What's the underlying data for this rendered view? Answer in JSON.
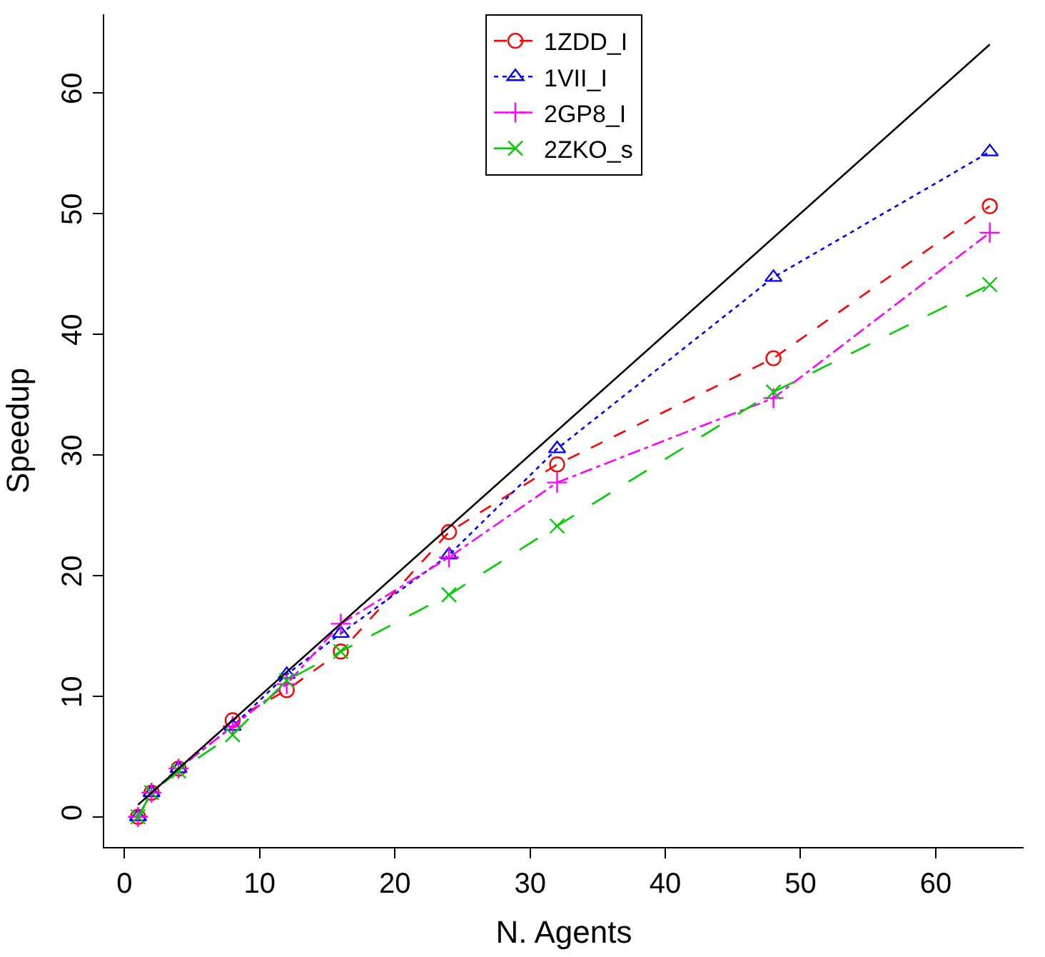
{
  "chart_data": {
    "type": "line",
    "xlabel": "N. Agents",
    "ylabel": "Speedup",
    "x": [
      1,
      2,
      4,
      8,
      12,
      16,
      24,
      32,
      48,
      64
    ],
    "xlim": [
      -1.5,
      66.5
    ],
    "ylim": [
      -2.5,
      66.5
    ],
    "xticks": [
      0,
      10,
      20,
      30,
      40,
      50,
      60
    ],
    "yticks": [
      0,
      10,
      20,
      30,
      40,
      50,
      60
    ],
    "legend": "top",
    "series": [
      {
        "name": "1ZDD_I",
        "color": "#ff0000",
        "marker": "circle",
        "line_style": "dashed",
        "values": [
          0,
          2,
          4,
          8,
          10.5,
          13.7,
          23.6,
          29.2,
          38,
          50.6
        ]
      },
      {
        "name": "1VII_I",
        "color": "#0000ff",
        "marker": "triangle",
        "line_style": "dotted",
        "values": [
          0,
          2,
          4,
          7.5,
          11.8,
          15.2,
          21.7,
          30.5,
          44.7,
          55.1
        ]
      },
      {
        "name": "2GP8_I",
        "color": "#ff00ff",
        "marker": "cross",
        "line_style": "dashdot",
        "values": [
          0,
          2,
          4,
          7.5,
          11,
          16,
          21.5,
          27.7,
          34.7,
          48.4
        ]
      },
      {
        "name": "2ZKO_s",
        "color": "#00cd00",
        "marker": "x",
        "line_style": "longdash",
        "values": [
          0,
          2,
          3.8,
          6.8,
          11.3,
          13.7,
          18.4,
          24.1,
          35.2,
          44.1
        ]
      },
      {
        "color": "#000000",
        "marker": "none",
        "line_style": "solid",
        "x": [
          1,
          64
        ],
        "values": [
          1,
          64
        ]
      }
    ]
  }
}
